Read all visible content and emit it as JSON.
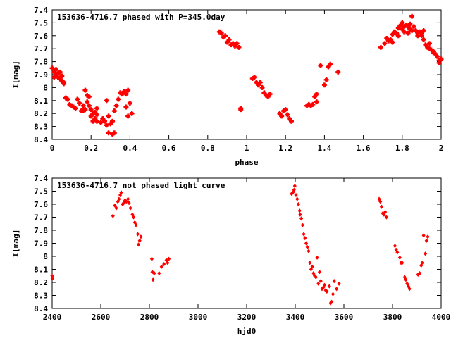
{
  "chart_data": [
    {
      "type": "scatter",
      "title": "153636-4716.7 phased with P=345.0day",
      "xlabel": "phase",
      "ylabel": "I[mag]",
      "xlim": [
        0,
        2
      ],
      "ylim": [
        8.4,
        7.4
      ],
      "y_inverted": true,
      "xticks": [
        "0",
        "0.2",
        "0.4",
        "0.6",
        "0.8",
        "1",
        "1.2",
        "1.4",
        "1.6",
        "1.8",
        "2"
      ],
      "yticks": [
        "7.4",
        "7.5",
        "7.6",
        "7.7",
        "7.8",
        "7.9",
        "8",
        "8.1",
        "8.2",
        "8.3",
        "8.4"
      ],
      "marker_color": "#ff0000",
      "points": [
        [
          0.0,
          7.85
        ],
        [
          0.01,
          7.88
        ],
        [
          0.01,
          7.92
        ],
        [
          0.02,
          7.86
        ],
        [
          0.02,
          7.9
        ],
        [
          0.03,
          7.89
        ],
        [
          0.03,
          7.92
        ],
        [
          0.04,
          7.88
        ],
        [
          0.04,
          7.93
        ],
        [
          0.05,
          7.91
        ],
        [
          0.05,
          7.95
        ],
        [
          0.06,
          7.97
        ],
        [
          0.06,
          7.96
        ],
        [
          0.07,
          8.08
        ],
        [
          0.08,
          8.09
        ],
        [
          0.09,
          8.13
        ],
        [
          0.1,
          8.14
        ],
        [
          0.11,
          8.15
        ],
        [
          0.12,
          8.16
        ],
        [
          0.13,
          8.09
        ],
        [
          0.14,
          8.12
        ],
        [
          0.15,
          8.18
        ],
        [
          0.16,
          8.18
        ],
        [
          0.16,
          8.14
        ],
        [
          0.17,
          8.02
        ],
        [
          0.17,
          8.17
        ],
        [
          0.18,
          8.11
        ],
        [
          0.18,
          8.06
        ],
        [
          0.19,
          8.14
        ],
        [
          0.19,
          8.07
        ],
        [
          0.2,
          8.17
        ],
        [
          0.2,
          8.22
        ],
        [
          0.21,
          8.2
        ],
        [
          0.21,
          8.26
        ],
        [
          0.22,
          8.24
        ],
        [
          0.22,
          8.19
        ],
        [
          0.23,
          8.26
        ],
        [
          0.23,
          8.21
        ],
        [
          0.23,
          8.16
        ],
        [
          0.25,
          8.27
        ],
        [
          0.26,
          8.24
        ],
        [
          0.27,
          8.26
        ],
        [
          0.28,
          8.29
        ],
        [
          0.28,
          8.1
        ],
        [
          0.29,
          8.35
        ],
        [
          0.29,
          8.22
        ],
        [
          0.3,
          8.28
        ],
        [
          0.31,
          8.36
        ],
        [
          0.31,
          8.26
        ],
        [
          0.32,
          8.35
        ],
        [
          0.32,
          8.18
        ],
        [
          0.33,
          8.14
        ],
        [
          0.34,
          8.09
        ],
        [
          0.35,
          8.04
        ],
        [
          0.36,
          8.05
        ],
        [
          0.37,
          8.03
        ],
        [
          0.38,
          8.15
        ],
        [
          0.38,
          8.05
        ],
        [
          0.39,
          8.02
        ],
        [
          0.39,
          8.22
        ],
        [
          0.4,
          8.12
        ],
        [
          0.41,
          8.2
        ],
        [
          0.86,
          7.57
        ],
        [
          0.87,
          7.58
        ],
        [
          0.88,
          7.61
        ],
        [
          0.89,
          7.6
        ],
        [
          0.9,
          7.65
        ],
        [
          0.91,
          7.63
        ],
        [
          0.92,
          7.67
        ],
        [
          0.93,
          7.66
        ],
        [
          0.94,
          7.68
        ],
        [
          0.95,
          7.66
        ],
        [
          0.96,
          7.69
        ],
        [
          0.97,
          8.16
        ],
        [
          0.97,
          8.17
        ],
        [
          1.03,
          7.93
        ],
        [
          1.04,
          7.92
        ],
        [
          1.05,
          7.96
        ],
        [
          1.06,
          7.98
        ],
        [
          1.07,
          7.96
        ],
        [
          1.08,
          8.0
        ],
        [
          1.09,
          8.04
        ],
        [
          1.1,
          8.06
        ],
        [
          1.11,
          8.07
        ],
        [
          1.12,
          8.05
        ],
        [
          1.17,
          8.2
        ],
        [
          1.18,
          8.22
        ],
        [
          1.19,
          8.18
        ],
        [
          1.2,
          8.17
        ],
        [
          1.21,
          8.21
        ],
        [
          1.22,
          8.24
        ],
        [
          1.23,
          8.26
        ],
        [
          1.31,
          8.14
        ],
        [
          1.32,
          8.13
        ],
        [
          1.33,
          8.14
        ],
        [
          1.34,
          8.13
        ],
        [
          1.35,
          8.07
        ],
        [
          1.36,
          8.05
        ],
        [
          1.36,
          8.11
        ],
        [
          1.38,
          7.83
        ],
        [
          1.4,
          7.98
        ],
        [
          1.41,
          7.94
        ],
        [
          1.42,
          7.84
        ],
        [
          1.43,
          7.82
        ],
        [
          1.47,
          7.88
        ],
        [
          1.69,
          7.69
        ],
        [
          1.71,
          7.66
        ],
        [
          1.72,
          7.62
        ],
        [
          1.73,
          7.64
        ],
        [
          1.74,
          7.63
        ],
        [
          1.75,
          7.59
        ],
        [
          1.75,
          7.65
        ],
        [
          1.76,
          7.57
        ],
        [
          1.77,
          7.58
        ],
        [
          1.78,
          7.54
        ],
        [
          1.78,
          7.6
        ],
        [
          1.79,
          7.52
        ],
        [
          1.8,
          7.55
        ],
        [
          1.8,
          7.5
        ],
        [
          1.81,
          7.53
        ],
        [
          1.81,
          7.57
        ],
        [
          1.82,
          7.52
        ],
        [
          1.83,
          7.53
        ],
        [
          1.83,
          7.58
        ],
        [
          1.84,
          7.55
        ],
        [
          1.84,
          7.51
        ],
        [
          1.85,
          7.56
        ],
        [
          1.85,
          7.45
        ],
        [
          1.86,
          7.53
        ],
        [
          1.87,
          7.56
        ],
        [
          1.88,
          7.58
        ],
        [
          1.88,
          7.6
        ],
        [
          1.89,
          7.57
        ],
        [
          1.9,
          7.6
        ],
        [
          1.9,
          7.58
        ],
        [
          1.91,
          7.63
        ],
        [
          1.91,
          7.56
        ],
        [
          1.92,
          7.67
        ],
        [
          1.93,
          7.69
        ],
        [
          1.94,
          7.66
        ],
        [
          1.94,
          7.7
        ],
        [
          1.95,
          7.71
        ],
        [
          1.96,
          7.73
        ],
        [
          1.96,
          7.72
        ],
        [
          1.97,
          7.74
        ],
        [
          1.98,
          7.76
        ],
        [
          1.99,
          7.79
        ],
        [
          1.99,
          7.81
        ],
        [
          2.0,
          7.78
        ]
      ]
    },
    {
      "type": "scatter",
      "title": "153636-4716.7 not phased light curve",
      "xlabel": "hjd0",
      "ylabel": "I[mag]",
      "xlim": [
        2400,
        4000
      ],
      "ylim": [
        8.4,
        7.4
      ],
      "y_inverted": true,
      "xticks": [
        "2400",
        "2600",
        "2800",
        "3000",
        "3200",
        "3400",
        "3600",
        "3800",
        "4000"
      ],
      "yticks": [
        "7.4",
        "7.5",
        "7.6",
        "7.7",
        "7.8",
        "7.9",
        "8",
        "8.1",
        "8.2",
        "8.3",
        "8.4"
      ],
      "marker_color": "#ff0000",
      "points": [
        [
          2400,
          8.15
        ],
        [
          2401,
          8.17
        ],
        [
          2650,
          7.69
        ],
        [
          2658,
          7.61
        ],
        [
          2664,
          7.63
        ],
        [
          2670,
          7.58
        ],
        [
          2675,
          7.56
        ],
        [
          2680,
          7.53
        ],
        [
          2684,
          7.51
        ],
        [
          2690,
          7.6
        ],
        [
          2695,
          7.59
        ],
        [
          2700,
          7.57
        ],
        [
          2705,
          7.58
        ],
        [
          2712,
          7.56
        ],
        [
          2716,
          7.59
        ],
        [
          2722,
          7.63
        ],
        [
          2730,
          7.68
        ],
        [
          2735,
          7.7
        ],
        [
          2740,
          7.74
        ],
        [
          2745,
          7.76
        ],
        [
          2752,
          7.83
        ],
        [
          2755,
          7.91
        ],
        [
          2760,
          7.88
        ],
        [
          2765,
          7.85
        ],
        [
          2810,
          8.02
        ],
        [
          2812,
          8.12
        ],
        [
          2815,
          8.18
        ],
        [
          2820,
          8.13
        ],
        [
          2840,
          8.13
        ],
        [
          2850,
          8.08
        ],
        [
          2860,
          8.06
        ],
        [
          2870,
          8.03
        ],
        [
          2875,
          8.05
        ],
        [
          2880,
          8.02
        ],
        [
          3385,
          7.52
        ],
        [
          3390,
          7.51
        ],
        [
          3395,
          7.49
        ],
        [
          3398,
          7.46
        ],
        [
          3403,
          7.53
        ],
        [
          3408,
          7.56
        ],
        [
          3413,
          7.6
        ],
        [
          3418,
          7.65
        ],
        [
          3420,
          7.68
        ],
        [
          3425,
          7.71
        ],
        [
          3430,
          7.76
        ],
        [
          3435,
          7.83
        ],
        [
          3440,
          7.86
        ],
        [
          3445,
          7.9
        ],
        [
          3450,
          7.93
        ],
        [
          3455,
          7.96
        ],
        [
          3460,
          8.05
        ],
        [
          3465,
          8.1
        ],
        [
          3470,
          8.08
        ],
        [
          3475,
          8.13
        ],
        [
          3480,
          8.15
        ],
        [
          3485,
          8.16
        ],
        [
          3490,
          8.01
        ],
        [
          3495,
          8.21
        ],
        [
          3500,
          8.12
        ],
        [
          3505,
          8.19
        ],
        [
          3510,
          8.25
        ],
        [
          3515,
          8.24
        ],
        [
          3520,
          8.22
        ],
        [
          3525,
          8.26
        ],
        [
          3530,
          8.27
        ],
        [
          3540,
          8.23
        ],
        [
          3545,
          8.36
        ],
        [
          3550,
          8.35
        ],
        [
          3555,
          8.29
        ],
        [
          3560,
          8.19
        ],
        [
          3570,
          8.25
        ],
        [
          3580,
          8.21
        ],
        [
          3745,
          7.56
        ],
        [
          3750,
          7.58
        ],
        [
          3755,
          7.62
        ],
        [
          3760,
          7.67
        ],
        [
          3765,
          7.68
        ],
        [
          3770,
          7.66
        ],
        [
          3775,
          7.7
        ],
        [
          3810,
          7.92
        ],
        [
          3815,
          7.95
        ],
        [
          3820,
          7.97
        ],
        [
          3830,
          8.01
        ],
        [
          3835,
          8.05
        ],
        [
          3840,
          8.05
        ],
        [
          3850,
          8.16
        ],
        [
          3855,
          8.18
        ],
        [
          3860,
          8.21
        ],
        [
          3865,
          8.23
        ],
        [
          3870,
          8.25
        ],
        [
          3905,
          8.14
        ],
        [
          3912,
          8.13
        ],
        [
          3918,
          8.07
        ],
        [
          3922,
          8.05
        ],
        [
          3928,
          7.84
        ],
        [
          3935,
          7.98
        ],
        [
          3940,
          7.88
        ],
        [
          3945,
          7.85
        ]
      ]
    }
  ]
}
